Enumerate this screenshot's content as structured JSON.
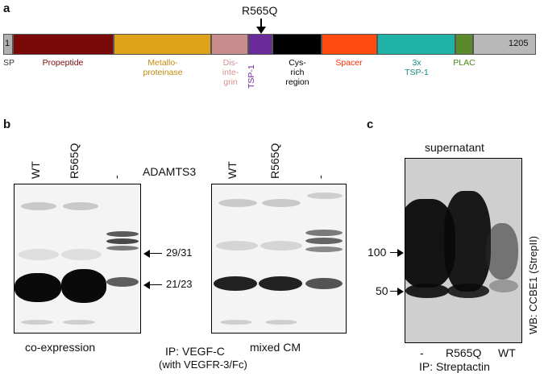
{
  "panel_a": {
    "letter": "a",
    "mutation_label": "R565Q",
    "start_number": "1",
    "end_number": "1205",
    "domains": [
      {
        "name": "SP",
        "color": "#b0b0b0",
        "label_color": "#333333"
      },
      {
        "name": "Propeptide",
        "color": "#7a0a0a",
        "label_color": "#7a0a0a"
      },
      {
        "name": "Metallo-\nproteinase",
        "color": "#e0a21a",
        "label_color": "#c28a10"
      },
      {
        "name": "Dis-\ninte-\ngrin",
        "color": "#c98c8c",
        "label_color": "#d49090"
      },
      {
        "name": "TSP-1",
        "color": "#6b2a9a",
        "label_color": "#6b2a9a"
      },
      {
        "name": "Cys-\nrich\nregion",
        "color": "#000000",
        "label_color": "#000000"
      },
      {
        "name": "Spacer",
        "color": "#ff4a10",
        "label_color": "#ff2a00"
      },
      {
        "name": "3x\nTSP-1",
        "color": "#1fb2a6",
        "label_color": "#178a82"
      },
      {
        "name": "PLAC",
        "color": "#5a8a2a",
        "label_color": "#4a8a10"
      },
      {
        "name": "",
        "color": "#b8b8b8",
        "label_color": "#333333"
      }
    ]
  },
  "panel_b": {
    "letter": "b",
    "lanes_left": [
      "WT",
      "R565Q",
      "-"
    ],
    "protein_label": "ADAMTS3",
    "lanes_right": [
      "WT",
      "R565Q",
      "-"
    ],
    "markers": [
      "29/31",
      "21/23"
    ],
    "caption_left": "co-expression",
    "caption_right": "mixed CM",
    "ip_line1": "IP: VEGF-C",
    "ip_line2": "(with VEGFR-3/Fc)"
  },
  "panel_c": {
    "letter": "c",
    "title": "supernatant",
    "markers": [
      "100",
      "50"
    ],
    "wb_label": "WB: CCBE1 (StrepII)",
    "lanes": [
      "-",
      "R565Q",
      "WT"
    ],
    "ip_label": "IP: Streptactin"
  }
}
